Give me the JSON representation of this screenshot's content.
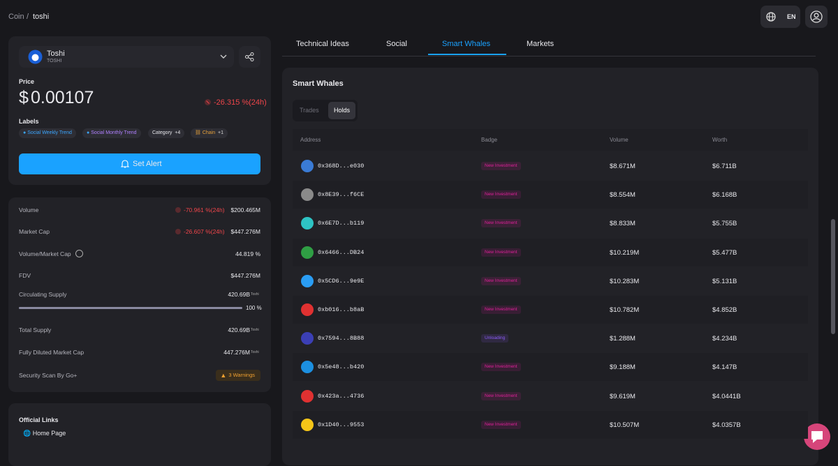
{
  "breadcrumb": {
    "parent": "Coin",
    "separator": "/",
    "current": "toshi"
  },
  "header": {
    "language": "EN"
  },
  "coin": {
    "name": "Toshi",
    "symbol": "TOSHI",
    "price_label": "Price",
    "currency": "$",
    "price": "0.00107",
    "price_change": "-26.315 %(24h)",
    "labels_title": "Labels",
    "labels": [
      "Social Weekly Trend",
      "Social Monthly Trend"
    ],
    "category": {
      "label": "Category",
      "count": "+4"
    },
    "chain": {
      "label": "Chain",
      "count": "+1"
    },
    "alert_button": "Set Alert"
  },
  "stats": {
    "volume": {
      "label": "Volume",
      "change": "-70.961 %(24h)",
      "value": "$200.465M"
    },
    "market_cap": {
      "label": "Market Cap",
      "change": "-26.607 %(24h)",
      "value": "$447.276M"
    },
    "volume_market_cap": {
      "label": "Volume/Market Cap",
      "value": "44.819 %"
    },
    "fdv": {
      "label": "FDV",
      "value": "$447.276M"
    },
    "circulating_supply": {
      "label": "Circulating Supply",
      "value": "420.69B",
      "unit": "Toshi",
      "percent": {
        "value": 100,
        "label": "100 %"
      }
    },
    "total_supply": {
      "label": "Total Supply",
      "value": "420.69B",
      "unit": "Toshi"
    },
    "fully_diluted_market_cap": {
      "label": "Fully Diluted Market Cap",
      "value": "447.276M",
      "unit": "Toshi"
    },
    "security_scan": {
      "label": "Security Scan By Go+",
      "value": "3 Warnings"
    }
  },
  "links": {
    "title": "Official Links",
    "items": [
      "Home Page"
    ]
  },
  "tabs": {
    "items": [
      "Technical Ideas",
      "Social",
      "Smart Whales",
      "Markets"
    ],
    "active": 2
  },
  "panel": {
    "title": "Smart Whales",
    "toggles": [
      "Trades",
      "Holds"
    ],
    "active_toggle": 1,
    "table": {
      "columns": [
        "Address",
        "Badge",
        "Volume",
        "Worth"
      ],
      "rows": [
        {
          "address": "0x368D...e030",
          "badge": "New Investment",
          "volume": "$8.671M",
          "worth": "$6.711B",
          "avatar_color": "#3a7bd5",
          "badge_color": "#e0209a"
        },
        {
          "address": "0x8E39...f6CE",
          "badge": "New Investment",
          "volume": "$8.554M",
          "worth": "$6.168B",
          "avatar_color": "#8a8a8a",
          "badge_color": "#e0209a"
        },
        {
          "address": "0x6E7D...b119",
          "badge": "New Investment",
          "volume": "$8.833M",
          "worth": "$5.755B",
          "avatar_color": "#2ec4c4",
          "badge_color": "#e0209a"
        },
        {
          "address": "0x6466...DB24",
          "badge": "New Investment",
          "volume": "$10.219M",
          "worth": "$5.477B",
          "avatar_color": "#2f9e44",
          "badge_color": "#e0209a"
        },
        {
          "address": "0x5CD6...9e9E",
          "badge": "New Investment",
          "volume": "$10.283M",
          "worth": "$5.131B",
          "avatar_color": "#2a9df4",
          "badge_color": "#e0209a"
        },
        {
          "address": "0xb016...b8aB",
          "badge": "New Investment",
          "volume": "$10.782M",
          "worth": "$4.852B",
          "avatar_color": "#e03131",
          "badge_color": "#e0209a"
        },
        {
          "address": "0x7594...8B88",
          "badge": "Unloading",
          "volume": "$1.288M",
          "worth": "$4.234B",
          "avatar_color": "#3b3fb5",
          "badge_color": "#8b5cf6"
        },
        {
          "address": "0x5e48...b420",
          "badge": "New Investment",
          "volume": "$9.188M",
          "worth": "$4.147B",
          "avatar_color": "#1c8fe0",
          "badge_color": "#e0209a"
        },
        {
          "address": "0x423a...4736",
          "badge": "New Investment",
          "volume": "$9.619M",
          "worth": "$4.0441B",
          "avatar_color": "#e03131",
          "badge_color": "#e0209a"
        },
        {
          "address": "0x1D40...9553",
          "badge": "New Investment",
          "volume": "$10.507M",
          "worth": "$4.0357B",
          "avatar_color": "#f5c518",
          "badge_color": "#e0209a"
        }
      ]
    }
  }
}
